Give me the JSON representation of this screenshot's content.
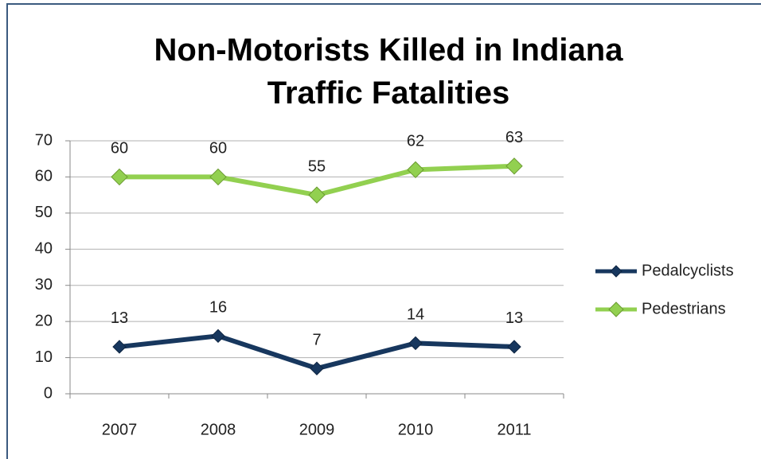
{
  "chart_data": {
    "type": "line",
    "title": "Non-Motorists Killed in Indiana Traffic Fatalities",
    "categories": [
      "2007",
      "2008",
      "2009",
      "2010",
      "2011"
    ],
    "series": [
      {
        "name": "Pedalcyclists",
        "color": "#17375e",
        "values": [
          13,
          16,
          7,
          14,
          13
        ]
      },
      {
        "name": "Pedestrians",
        "color": "#92d050",
        "values": [
          60,
          60,
          55,
          62,
          63
        ]
      }
    ],
    "ylim": [
      0,
      70
    ],
    "yticks": [
      0,
      10,
      20,
      30,
      40,
      50,
      60,
      70
    ],
    "grid": true,
    "legend": "right"
  }
}
